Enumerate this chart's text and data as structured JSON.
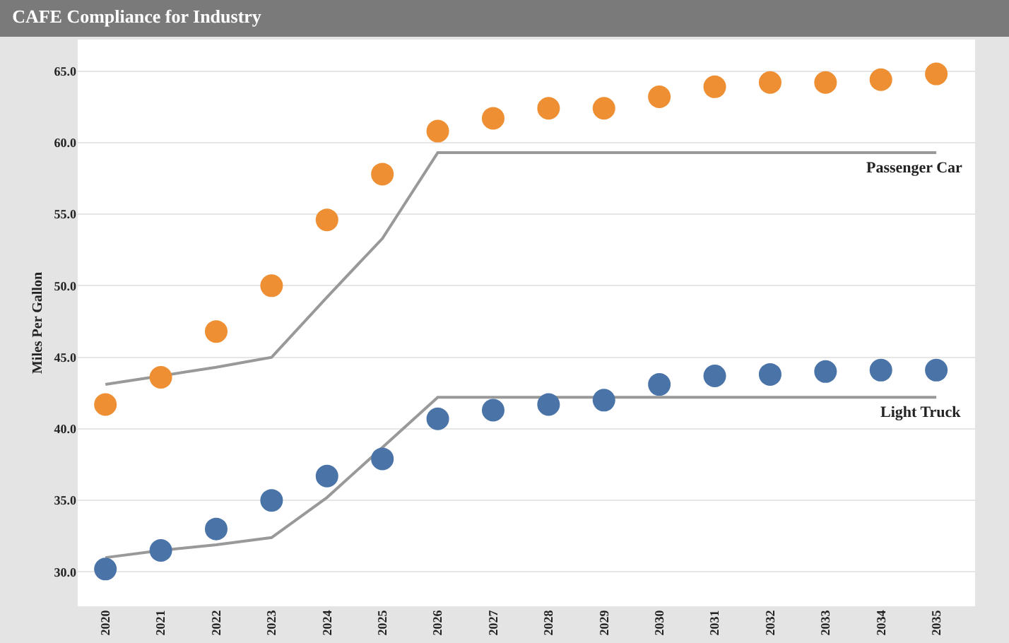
{
  "chart_data": {
    "type": "scatter",
    "title": "CAFE Compliance for Industry",
    "ylabel": "Miles Per Gallon",
    "categories": [
      "2020",
      "2021",
      "2022",
      "2023",
      "2024",
      "2025",
      "2026",
      "2027",
      "2028",
      "2029",
      "2030",
      "2031",
      "2032",
      "2033",
      "2034",
      "2035"
    ],
    "series": [
      {
        "type": "line",
        "name": "Passenger Car",
        "color": "#999999",
        "marker": "none",
        "values": [
          43.1,
          43.7,
          44.3,
          45.0,
          49.2,
          53.3,
          59.3,
          59.3,
          59.3,
          59.3,
          59.3,
          59.3,
          59.3,
          59.3,
          59.3,
          59.3
        ]
      },
      {
        "type": "line",
        "name": "Light Truck",
        "color": "#999999",
        "marker": "none",
        "values": [
          31.0,
          31.5,
          31.9,
          32.4,
          35.2,
          38.7,
          42.2,
          42.2,
          42.2,
          42.2,
          42.2,
          42.2,
          42.2,
          42.2,
          42.2,
          42.2
        ]
      },
      {
        "color": "#ee8f33",
        "marker": "circle",
        "values": [
          41.7,
          43.6,
          46.8,
          50.0,
          54.6,
          57.8,
          60.8,
          61.7,
          62.4,
          62.4,
          63.2,
          63.9,
          64.2,
          64.2,
          64.4,
          64.8
        ]
      },
      {
        "color": "#4a74a8",
        "marker": "circle",
        "values": [
          30.2,
          31.5,
          33.0,
          35.0,
          36.7,
          37.9,
          40.7,
          41.3,
          41.7,
          42.0,
          43.1,
          43.7,
          43.8,
          44.0,
          44.1,
          44.1
        ]
      }
    ],
    "ylim": [
      27.6,
      67.2
    ],
    "yticks": [
      {
        "value": 30,
        "label": "30.0"
      },
      {
        "value": 35,
        "label": "35.0"
      },
      {
        "value": 40,
        "label": "40.0"
      },
      {
        "value": 45,
        "label": "45.0"
      },
      {
        "value": 50,
        "label": "50.0"
      },
      {
        "value": 55,
        "label": "55.0"
      },
      {
        "value": 60,
        "label": "60.0"
      },
      {
        "value": 65,
        "label": "65.0"
      }
    ],
    "grid": "y",
    "legend": false
  }
}
